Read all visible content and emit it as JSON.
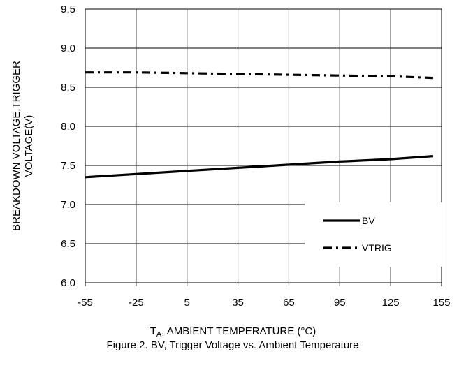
{
  "chart_data": {
    "type": "line",
    "x": [
      -55,
      -25,
      5,
      35,
      65,
      95,
      125,
      150
    ],
    "series": [
      {
        "name": "BV",
        "values": [
          7.35,
          7.39,
          7.43,
          7.47,
          7.51,
          7.55,
          7.58,
          7.62
        ],
        "style": "solid",
        "color": "#000000"
      },
      {
        "name": "VTRIG",
        "values": [
          8.69,
          8.69,
          8.68,
          8.67,
          8.66,
          8.65,
          8.64,
          8.62
        ],
        "style": "dash-dot",
        "color": "#000000"
      }
    ],
    "xlim": [
      -55,
      155
    ],
    "ylim": [
      6.0,
      9.5
    ],
    "xticks": [
      "-55",
      "-25",
      "5",
      "35",
      "65",
      "95",
      "125",
      "155"
    ],
    "yticks": [
      "6.0",
      "6.5",
      "7.0",
      "7.5",
      "8.0",
      "8.5",
      "9.0",
      "9.5"
    ],
    "ylabel_line1": "BREAKDOWN VOLTAGE,TRIGGER",
    "ylabel_line2": "VOLTAGE(V)",
    "xlabel_sym": "T",
    "xlabel_sub": "A",
    "xlabel_rest": ", AMBIENT TEMPERATURE (°C)",
    "caption": "Figure 2. BV, Trigger Voltage vs. Ambient Temperature",
    "grid": true,
    "legend_position": "bottom-right"
  }
}
